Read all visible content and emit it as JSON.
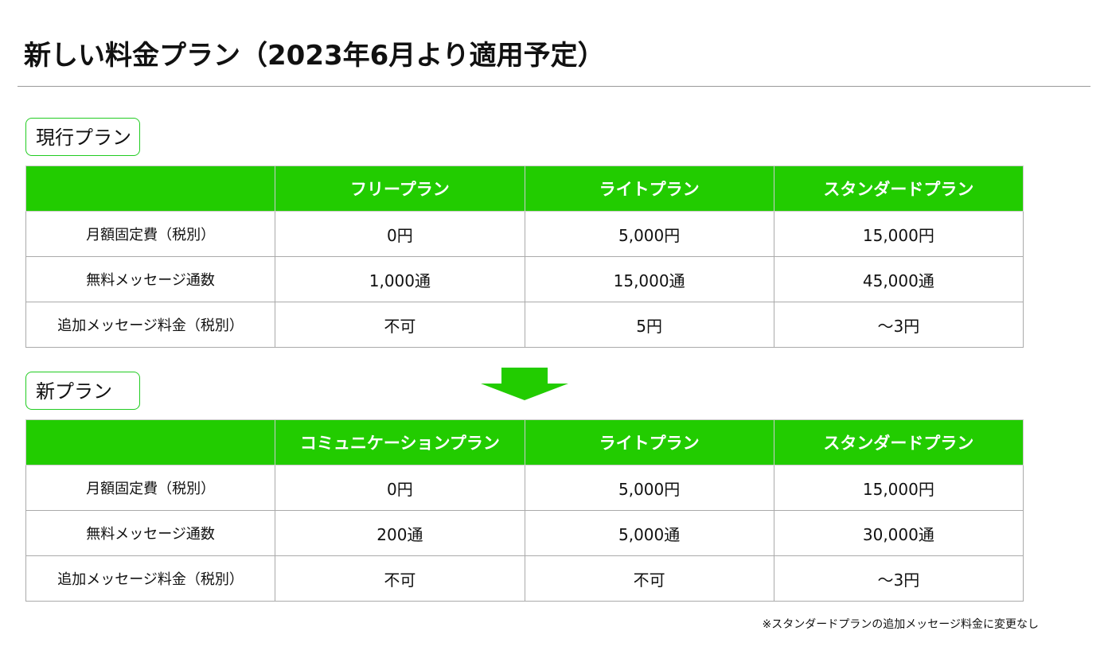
{
  "header": {
    "title": "新しい料金プラン（2023年6月より適用予定）"
  },
  "sections": [
    {
      "label": "現行プラン",
      "table": {
        "header": [
          "フリープラン",
          "ライトプラン",
          "スタンダードプラン"
        ],
        "rows": [
          [
            "月額固定費（税別）",
            "0円",
            "5,000円",
            "15,000円"
          ],
          [
            "無料メッセージ通数",
            "1,000通",
            "15,000通",
            "45,000通"
          ],
          [
            "追加メッセージ料金（税別）",
            "不可",
            "5円",
            "～3円"
          ]
        ]
      }
    },
    {
      "label": "新プラン",
      "table": {
        "header": [
          "コミュニケーションプラン",
          "ライトプラン",
          "スタンダードプラン"
        ],
        "rows": [
          [
            "月額固定費（税別）",
            "0円",
            "5,000円",
            "15,000円"
          ],
          [
            "無料メッセージ通数",
            "200通",
            "5,000通",
            "30,000通"
          ],
          [
            "追加メッセージ料金（税別）",
            "不可",
            "不可",
            "～3円"
          ]
        ]
      }
    }
  ],
  "note": "※スタンダードプランの追加メッセージ料金に変更なし"
}
